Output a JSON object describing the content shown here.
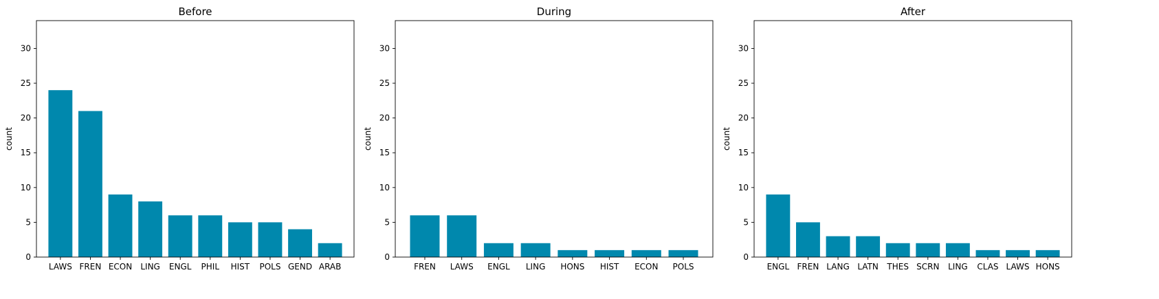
{
  "chart_data": [
    {
      "type": "bar",
      "title": "Before",
      "xlabel": "",
      "ylabel": "count",
      "ylim": [
        0,
        34
      ],
      "yticks": [
        0,
        5,
        10,
        15,
        20,
        25,
        30
      ],
      "categories": [
        "LAWS",
        "FREN",
        "ECON",
        "LING",
        "ENGL",
        "PHIL",
        "HIST",
        "POLS",
        "GEND",
        "ARAB"
      ],
      "values": [
        24,
        21,
        9,
        8,
        6,
        6,
        5,
        5,
        4,
        2
      ],
      "bar_color": "#0088AD",
      "grid": false
    },
    {
      "type": "bar",
      "title": "During",
      "xlabel": "",
      "ylabel": "count",
      "ylim": [
        0,
        34
      ],
      "yticks": [
        0,
        5,
        10,
        15,
        20,
        25,
        30
      ],
      "categories": [
        "FREN",
        "LAWS",
        "ENGL",
        "LING",
        "HONS",
        "HIST",
        "ECON",
        "POLS"
      ],
      "values": [
        6,
        6,
        2,
        2,
        1,
        1,
        1,
        1
      ],
      "bar_color": "#0088AD",
      "grid": false
    },
    {
      "type": "bar",
      "title": "After",
      "xlabel": "",
      "ylabel": "count",
      "ylim": [
        0,
        34
      ],
      "yticks": [
        0,
        5,
        10,
        15,
        20,
        25,
        30
      ],
      "categories": [
        "ENGL",
        "FREN",
        "LANG",
        "LATN",
        "THES",
        "SCRN",
        "LING",
        "CLAS",
        "LAWS",
        "HONS"
      ],
      "values": [
        9,
        5,
        3,
        3,
        2,
        2,
        2,
        1,
        1,
        1
      ],
      "bar_color": "#0088AD",
      "grid": false
    }
  ]
}
